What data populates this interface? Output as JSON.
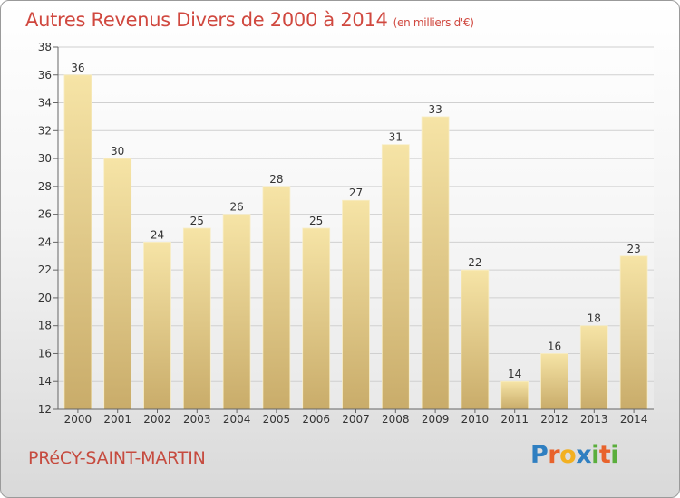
{
  "chart_data": {
    "type": "bar",
    "title": "Autres Revenus Divers de 2000 à 2014",
    "subtitle": "(en milliers d'€)",
    "categories": [
      "2000",
      "2001",
      "2002",
      "2003",
      "2004",
      "2005",
      "2006",
      "2007",
      "2008",
      "2009",
      "2010",
      "2011",
      "2012",
      "2013",
      "2014"
    ],
    "values": [
      36,
      30,
      24,
      25,
      26,
      28,
      25,
      27,
      31,
      33,
      22,
      14,
      16,
      18,
      23
    ],
    "ylim": [
      12,
      38
    ],
    "yticks": [
      12,
      14,
      16,
      18,
      20,
      22,
      24,
      26,
      28,
      30,
      32,
      34,
      36,
      38
    ],
    "grid": true,
    "bar_color": "#e6cd86"
  },
  "town": "PRéCY-SAINT-MARTIN",
  "logo": {
    "letters": [
      "P",
      "r",
      "o",
      "x",
      "i",
      "t",
      "i"
    ],
    "colors": [
      "#2f7fc1",
      "#e8632c",
      "#f2b021",
      "#2f7fc1",
      "#5aae3c",
      "#e8632c",
      "#5aae3c"
    ]
  },
  "colors": {
    "title": "#d0483f",
    "grid": "#d0d0d0",
    "axis": "#666666"
  }
}
